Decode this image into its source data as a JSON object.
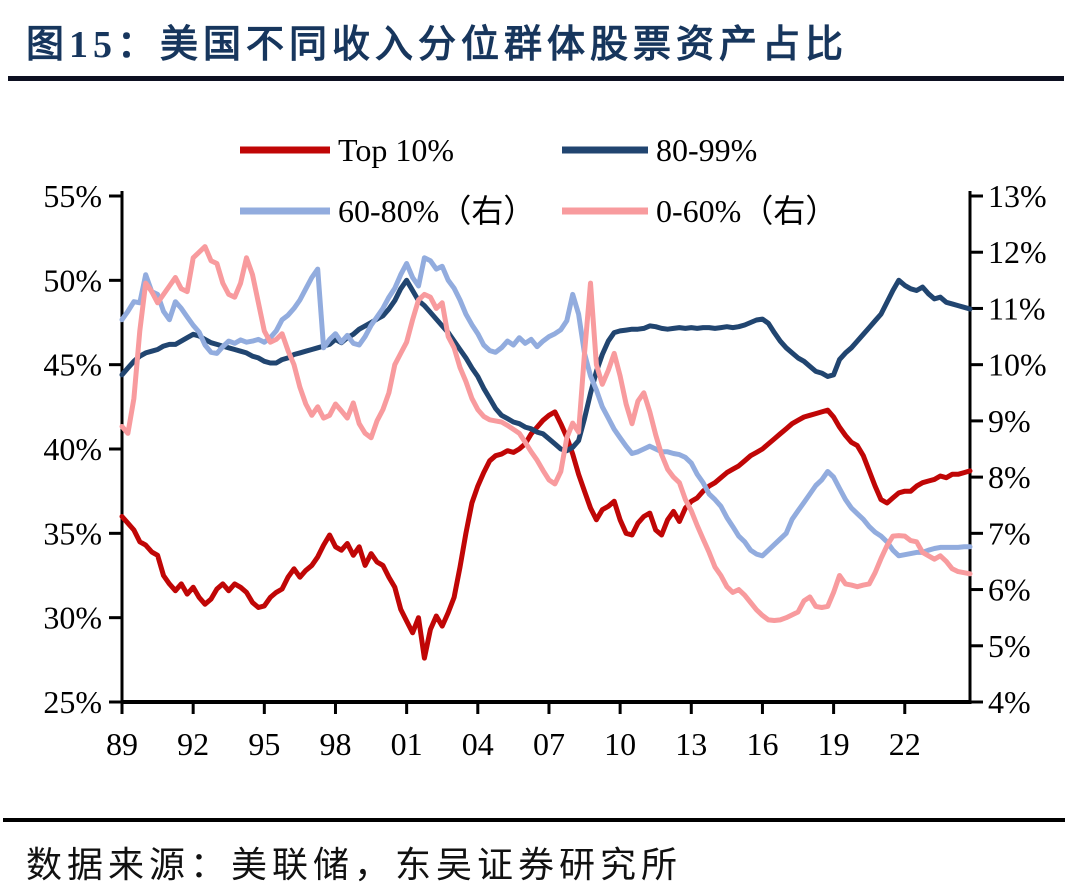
{
  "title": "图15：美国不同收入分位群体股票资产占比",
  "footer": "数据来源：美联储，东吴证券研究所",
  "colors": {
    "title_text": "#17365D",
    "title_rule": "#0D1021",
    "footer_rule": "#000000",
    "axis": "#000000",
    "top10": "#C00606",
    "p80_99": "#214570",
    "p60_80": "#92ACDE",
    "p0_60": "#F89B9E"
  },
  "chart_data": {
    "type": "line",
    "x_start": 1989.0,
    "x_step": 0.25,
    "x_tick_years": [
      1989,
      1992,
      1995,
      1998,
      2001,
      2004,
      2007,
      2010,
      2013,
      2016,
      2019,
      2022
    ],
    "x_tick_labels": [
      "89",
      "92",
      "95",
      "98",
      "01",
      "04",
      "07",
      "10",
      "13",
      "16",
      "19",
      "22"
    ],
    "left_axis": {
      "min": 25,
      "max": 55,
      "step": 5,
      "labels": [
        "55%",
        "50%",
        "45%",
        "40%",
        "35%",
        "30%",
        "25%"
      ]
    },
    "right_axis": {
      "min": 4,
      "max": 13,
      "step": 1,
      "labels": [
        "13%",
        "12%",
        "11%",
        "10%",
        "9%",
        "8%",
        "7%",
        "6%",
        "5%",
        "4%"
      ]
    },
    "legend": [
      {
        "series": 0,
        "row": 0,
        "col": 0
      },
      {
        "series": 1,
        "row": 0,
        "col": 1
      },
      {
        "series": 2,
        "row": 1,
        "col": 0
      },
      {
        "series": 3,
        "row": 1,
        "col": 1
      }
    ],
    "series": [
      {
        "name": "Top 10%",
        "axis": "left",
        "color": "#C00606",
        "values": [
          36.0,
          35.6,
          35.2,
          34.5,
          34.3,
          33.9,
          33.7,
          32.5,
          32.0,
          31.6,
          32.0,
          31.4,
          31.8,
          31.2,
          30.8,
          31.1,
          31.7,
          32.0,
          31.6,
          32.0,
          31.8,
          31.5,
          30.9,
          30.6,
          30.7,
          31.2,
          31.5,
          31.7,
          32.4,
          32.9,
          32.4,
          32.8,
          33.1,
          33.6,
          34.3,
          34.9,
          34.2,
          34.0,
          34.4,
          33.7,
          34.2,
          33.1,
          33.8,
          33.3,
          33.1,
          32.4,
          31.8,
          30.5,
          29.8,
          29.1,
          30.0,
          27.6,
          29.3,
          30.1,
          29.5,
          30.3,
          31.2,
          33.0,
          35.0,
          36.8,
          37.8,
          38.6,
          39.3,
          39.6,
          39.7,
          39.9,
          39.8,
          40.0,
          40.3,
          40.9,
          41.3,
          41.7,
          42.0,
          42.2,
          41.5,
          40.7,
          39.7,
          38.5,
          37.5,
          36.5,
          35.8,
          36.4,
          36.6,
          36.9,
          35.8,
          35.0,
          34.9,
          35.6,
          36.0,
          36.2,
          35.2,
          34.9,
          35.8,
          36.3,
          35.7,
          36.5,
          36.9,
          37.1,
          37.5,
          37.8,
          38.0,
          38.3,
          38.6,
          38.8,
          39.0,
          39.3,
          39.6,
          39.8,
          40.0,
          40.3,
          40.6,
          40.9,
          41.2,
          41.5,
          41.7,
          41.9,
          42.0,
          42.1,
          42.2,
          42.3,
          41.9,
          41.3,
          40.8,
          40.4,
          40.2,
          39.6,
          38.7,
          37.8,
          37.0,
          36.8,
          37.1,
          37.4,
          37.5,
          37.5,
          37.8,
          38.0,
          38.1,
          38.2,
          38.4,
          38.3,
          38.5,
          38.5,
          38.6,
          38.7
        ]
      },
      {
        "name": "80-99%",
        "axis": "left",
        "color": "#214570",
        "values": [
          44.4,
          44.8,
          45.2,
          45.5,
          45.7,
          45.8,
          45.9,
          46.1,
          46.2,
          46.2,
          46.4,
          46.6,
          46.8,
          46.7,
          46.5,
          46.3,
          46.2,
          46.1,
          46.0,
          45.9,
          45.8,
          45.7,
          45.5,
          45.4,
          45.2,
          45.1,
          45.1,
          45.3,
          45.4,
          45.6,
          45.7,
          45.8,
          45.9,
          46.0,
          46.1,
          46.2,
          46.5,
          46.3,
          46.6,
          46.8,
          47.1,
          47.3,
          47.5,
          47.7,
          47.9,
          48.3,
          48.8,
          49.5,
          50.0,
          49.4,
          48.8,
          48.5,
          48.1,
          47.7,
          47.3,
          46.9,
          46.4,
          45.9,
          45.4,
          44.8,
          44.3,
          43.6,
          43.0,
          42.4,
          42.0,
          41.8,
          41.6,
          41.5,
          41.3,
          41.2,
          41.0,
          40.9,
          40.6,
          40.3,
          40.0,
          39.9,
          40.1,
          40.5,
          41.8,
          43.3,
          44.6,
          45.6,
          46.4,
          46.9,
          47.0,
          47.05,
          47.1,
          47.1,
          47.15,
          47.3,
          47.25,
          47.15,
          47.1,
          47.15,
          47.2,
          47.15,
          47.2,
          47.15,
          47.2,
          47.2,
          47.15,
          47.2,
          47.25,
          47.2,
          47.25,
          47.35,
          47.5,
          47.65,
          47.7,
          47.45,
          46.9,
          46.4,
          46.0,
          45.7,
          45.4,
          45.2,
          44.9,
          44.6,
          44.5,
          44.3,
          44.4,
          45.3,
          45.7,
          46.0,
          46.4,
          46.8,
          47.2,
          47.6,
          48.0,
          48.7,
          49.4,
          50.0,
          49.7,
          49.5,
          49.4,
          49.6,
          49.2,
          48.9,
          49.0,
          48.7,
          48.6,
          48.5,
          48.4,
          48.3
        ]
      },
      {
        "name": "60-80%（右）",
        "axis": "right",
        "color": "#92ACDE",
        "values": [
          10.8,
          10.95,
          11.12,
          11.1,
          11.6,
          11.3,
          11.25,
          10.95,
          10.8,
          11.12,
          11.0,
          10.85,
          10.7,
          10.58,
          10.35,
          10.22,
          10.2,
          10.32,
          10.42,
          10.38,
          10.44,
          10.4,
          10.42,
          10.45,
          10.4,
          10.48,
          10.6,
          10.8,
          10.88,
          11.0,
          11.15,
          11.35,
          11.55,
          11.7,
          10.3,
          10.45,
          10.55,
          10.4,
          10.52,
          10.38,
          10.35,
          10.5,
          10.7,
          10.85,
          11.0,
          11.2,
          11.36,
          11.6,
          11.8,
          11.55,
          11.4,
          11.9,
          11.85,
          11.7,
          11.75,
          11.5,
          11.36,
          11.15,
          10.9,
          10.71,
          10.55,
          10.35,
          10.25,
          10.22,
          10.3,
          10.42,
          10.35,
          10.48,
          10.38,
          10.45,
          10.32,
          10.42,
          10.5,
          10.55,
          10.62,
          10.78,
          11.25,
          10.9,
          10.2,
          9.8,
          9.55,
          9.25,
          9.05,
          8.85,
          8.7,
          8.55,
          8.42,
          8.45,
          8.5,
          8.55,
          8.5,
          8.45,
          8.45,
          8.42,
          8.4,
          8.35,
          8.25,
          8.05,
          7.9,
          7.7,
          7.6,
          7.48,
          7.28,
          7.12,
          6.95,
          6.85,
          6.7,
          6.63,
          6.6,
          6.7,
          6.8,
          6.9,
          7.0,
          7.25,
          7.4,
          7.55,
          7.7,
          7.85,
          7.95,
          8.1,
          8.0,
          7.8,
          7.6,
          7.45,
          7.35,
          7.25,
          7.12,
          7.02,
          6.95,
          6.85,
          6.7,
          6.6,
          6.62,
          6.64,
          6.66,
          6.66,
          6.7,
          6.73,
          6.75,
          6.75,
          6.75,
          6.75,
          6.76,
          6.76
        ]
      },
      {
        "name": "0-60%（右）",
        "axis": "right",
        "color": "#F89B9E",
        "values": [
          8.9,
          8.78,
          9.4,
          10.6,
          11.45,
          11.3,
          11.1,
          11.25,
          11.4,
          11.55,
          11.35,
          11.3,
          11.9,
          12.0,
          12.1,
          11.85,
          11.8,
          11.45,
          11.25,
          11.2,
          11.45,
          11.9,
          11.6,
          11.1,
          10.6,
          10.4,
          10.45,
          10.55,
          10.25,
          10.0,
          9.6,
          9.3,
          9.1,
          9.25,
          9.05,
          9.1,
          9.3,
          9.18,
          9.05,
          9.32,
          8.95,
          8.78,
          8.7,
          9.0,
          9.2,
          9.5,
          10.0,
          10.2,
          10.4,
          10.8,
          11.15,
          11.25,
          11.2,
          11.0,
          11.1,
          10.5,
          10.3,
          9.95,
          9.7,
          9.4,
          9.2,
          9.08,
          9.02,
          9.0,
          8.98,
          8.92,
          8.85,
          8.78,
          8.62,
          8.45,
          8.3,
          8.12,
          7.95,
          7.88,
          8.1,
          8.7,
          8.96,
          8.8,
          10.2,
          11.45,
          10.0,
          9.65,
          9.9,
          10.2,
          9.8,
          9.3,
          8.95,
          9.35,
          9.5,
          9.16,
          8.75,
          8.4,
          8.14,
          8.0,
          7.9,
          7.6,
          7.4,
          7.14,
          6.9,
          6.66,
          6.4,
          6.25,
          6.05,
          5.95,
          6.0,
          5.9,
          5.77,
          5.64,
          5.54,
          5.46,
          5.45,
          5.46,
          5.5,
          5.55,
          5.6,
          5.8,
          5.87,
          5.7,
          5.68,
          5.7,
          5.95,
          6.25,
          6.1,
          6.08,
          6.05,
          6.08,
          6.1,
          6.3,
          6.55,
          6.78,
          6.95,
          6.96,
          6.95,
          6.87,
          6.85,
          6.66,
          6.6,
          6.54,
          6.6,
          6.5,
          6.37,
          6.32,
          6.3,
          6.28
        ]
      }
    ]
  }
}
